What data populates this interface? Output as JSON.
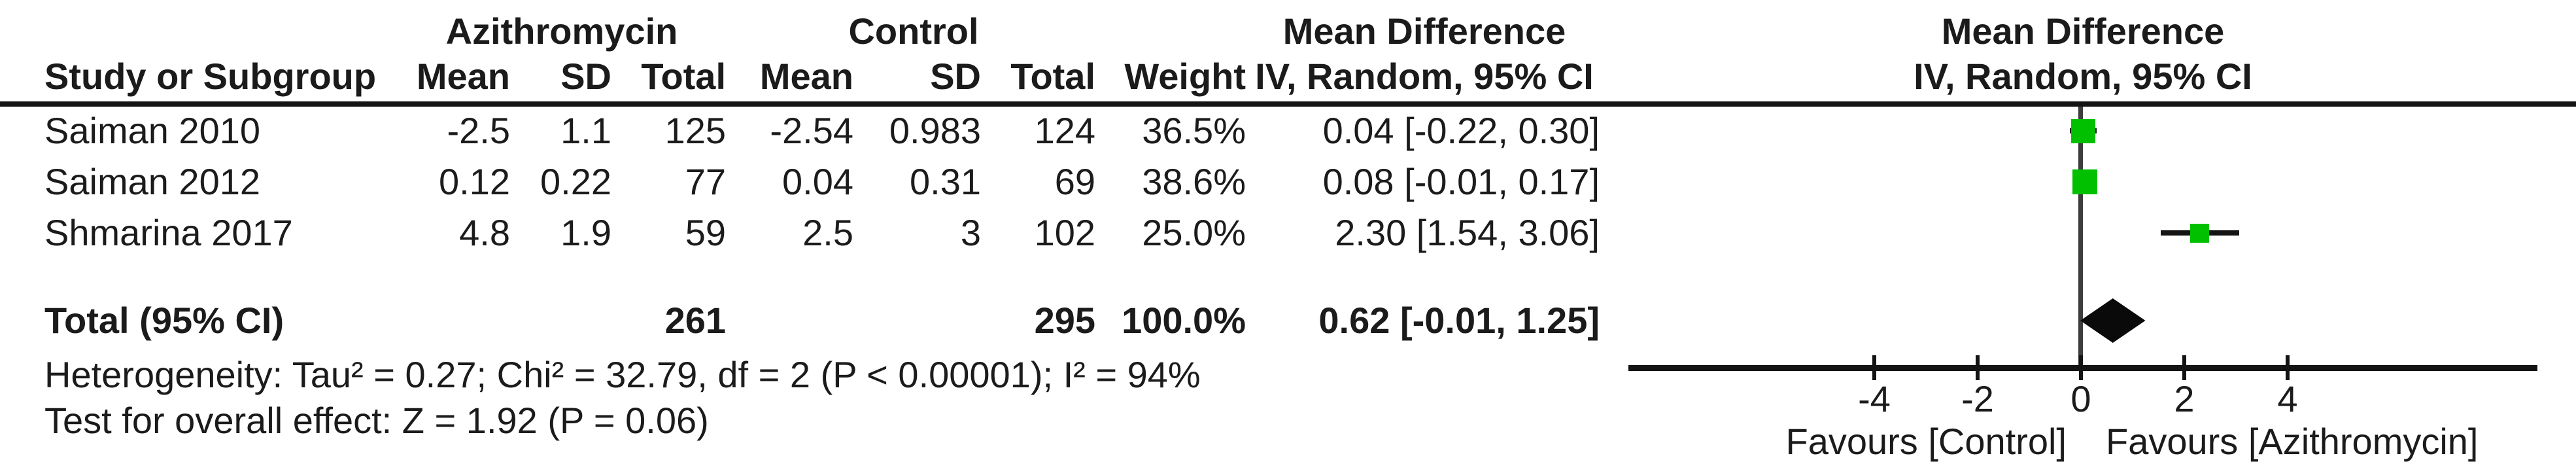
{
  "colors": {
    "marker": "#00c000",
    "line": "#141414",
    "zero_line": "#3d3d3d",
    "text": "#1b1b1b"
  },
  "header": {
    "azithromycin": "Azithromycin",
    "control": "Control",
    "md_text": "Mean Difference",
    "md_plot": "Mean Difference",
    "study": "Study or Subgroup",
    "mean1": "Mean",
    "sd1": "SD",
    "total1": "Total",
    "mean2": "Mean",
    "sd2": "SD",
    "total2": "Total",
    "weight": "Weight",
    "ci_text": "IV, Random, 95% CI",
    "ci_plot": "IV, Random, 95% CI"
  },
  "rows": [
    {
      "study": "Saiman 2010",
      "mean": "-2.5",
      "sd": "1.1",
      "total": "125",
      "c_mean": "-2.54",
      "c_sd": "0.983",
      "c_total": "124",
      "weight": "36.5%",
      "ci": "0.04 [-0.22, 0.30]"
    },
    {
      "study": "Saiman 2012",
      "mean": "0.12",
      "sd": "0.22",
      "total": "77",
      "c_mean": "0.04",
      "c_sd": "0.31",
      "c_total": "69",
      "weight": "38.6%",
      "ci": "0.08 [-0.01, 0.17]"
    },
    {
      "study": "Shmarina 2017",
      "mean": "4.8",
      "sd": "1.9",
      "total": "59",
      "c_mean": "2.5",
      "c_sd": "3",
      "c_total": "102",
      "weight": "25.0%",
      "ci": "2.30 [1.54, 3.06]"
    }
  ],
  "total_row": {
    "label": "Total (95% CI)",
    "total": "261",
    "c_total": "295",
    "weight": "100.0%",
    "ci": "0.62 [-0.01, 1.25]"
  },
  "footer": {
    "heterogeneity": "Heterogeneity: Tau² = 0.27; Chi² = 32.79, df = 2 (P < 0.00001); I² = 94%",
    "overall_effect": "Test for overall effect: Z = 1.92 (P = 0.06)"
  },
  "chart_data": {
    "type": "forest",
    "effect_measure": "Mean Difference",
    "method": "IV, Random, 95% CI",
    "studies": [
      {
        "name": "Saiman 2010",
        "estimate": 0.04,
        "ci_low": -0.22,
        "ci_high": 0.3,
        "weight_pct": 36.5
      },
      {
        "name": "Saiman 2012",
        "estimate": 0.08,
        "ci_low": -0.01,
        "ci_high": 0.17,
        "weight_pct": 38.6
      },
      {
        "name": "Shmarina 2017",
        "estimate": 2.3,
        "ci_low": 1.54,
        "ci_high": 3.06,
        "weight_pct": 25.0
      }
    ],
    "total": {
      "estimate": 0.62,
      "ci_low": -0.01,
      "ci_high": 1.25
    },
    "axis_ticks": [
      -4,
      -2,
      0,
      2,
      4
    ],
    "xlim": [
      -8.8,
      8.8
    ],
    "xlabel_left": "Favours [Control]",
    "xlabel_right": "Favours [Azithromycin]"
  }
}
